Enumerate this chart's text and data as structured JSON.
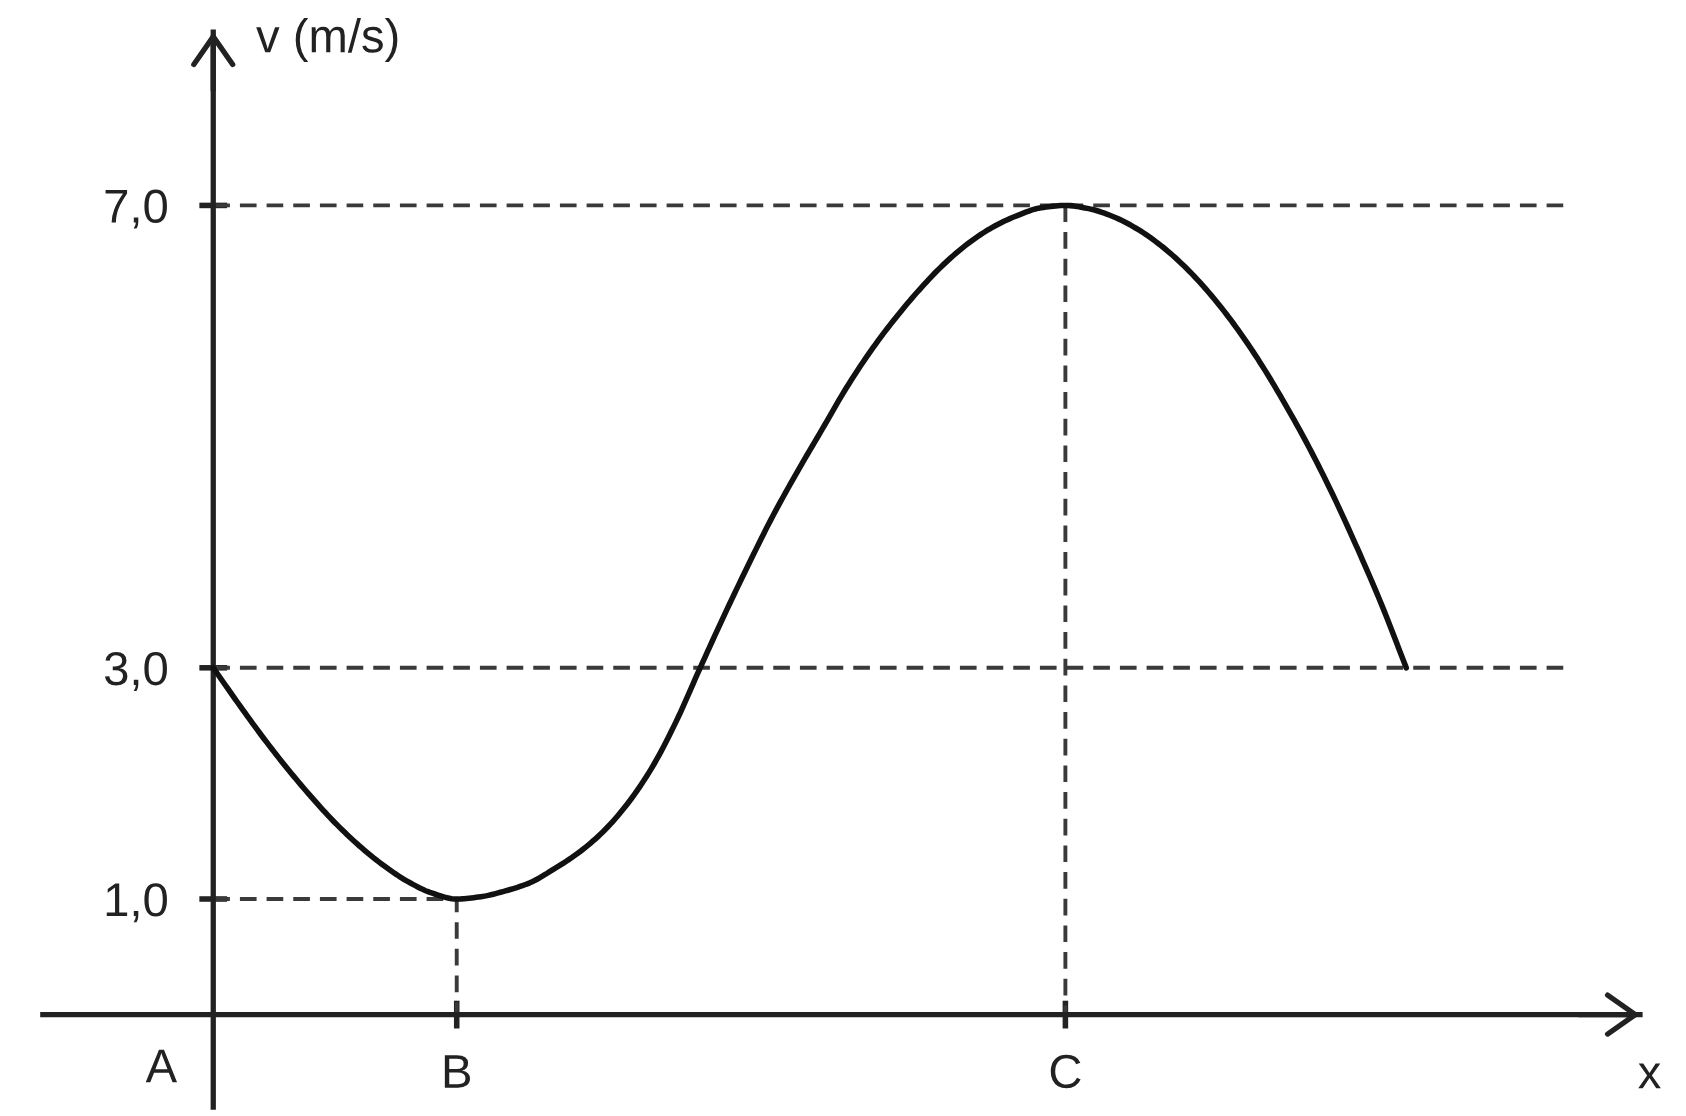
{
  "chart_data": {
    "type": "line",
    "xlabel": "x",
    "ylabel": "v (m/s)",
    "categories": [
      null,
      null,
      null,
      null,
      null,
      null,
      null,
      null,
      null,
      null,
      "B",
      null,
      null,
      null,
      null,
      null,
      null,
      null,
      null,
      null,
      null,
      null,
      null,
      null,
      null,
      null,
      null,
      null,
      null,
      null,
      null,
      null,
      null,
      null,
      null,
      "C",
      null,
      null,
      null,
      null,
      null,
      null,
      null,
      null,
      null,
      null,
      null,
      null,
      null,
      null
    ],
    "series": [
      {
        "color": "#111111",
        "values": [
          3.0,
          2.7,
          2.41,
          2.14,
          1.89,
          1.66,
          1.46,
          1.29,
          1.15,
          1.05,
          1.0,
          1.02,
          1.07,
          1.14,
          1.26,
          1.4,
          1.58,
          1.82,
          2.13,
          2.53,
          3.0,
          3.46,
          3.9,
          4.32,
          4.7,
          5.06,
          5.42,
          5.74,
          6.02,
          6.27,
          6.49,
          6.67,
          6.81,
          6.91,
          6.98,
          7.0,
          6.97,
          6.9,
          6.79,
          6.64,
          6.45,
          6.22,
          5.95,
          5.64,
          5.29,
          4.91,
          4.49,
          4.03,
          3.54,
          3.0
        ]
      }
    ],
    "ylim": [
      -0.8,
      8.5
    ],
    "yticks": [
      {
        "value": 1,
        "label": "1,0"
      },
      {
        "value": 3,
        "label": "3,0"
      },
      {
        "value": 7,
        "label": "7,0"
      }
    ],
    "ref_lines": [
      {
        "axis": "y",
        "value": 7,
        "line_style": "dashed",
        "color": "#3a3a3a"
      },
      {
        "axis": "y",
        "value": 3,
        "line_style": "dashed",
        "color": "#3a3a3a"
      },
      {
        "axis": "x",
        "value": "B",
        "line_style": "dashed",
        "color": "#3a3a3a"
      },
      {
        "axis": "x",
        "value": "C",
        "line_style": "dashed",
        "color": "#3a3a3a"
      }
    ],
    "annotations": [
      "A"
    ]
  }
}
